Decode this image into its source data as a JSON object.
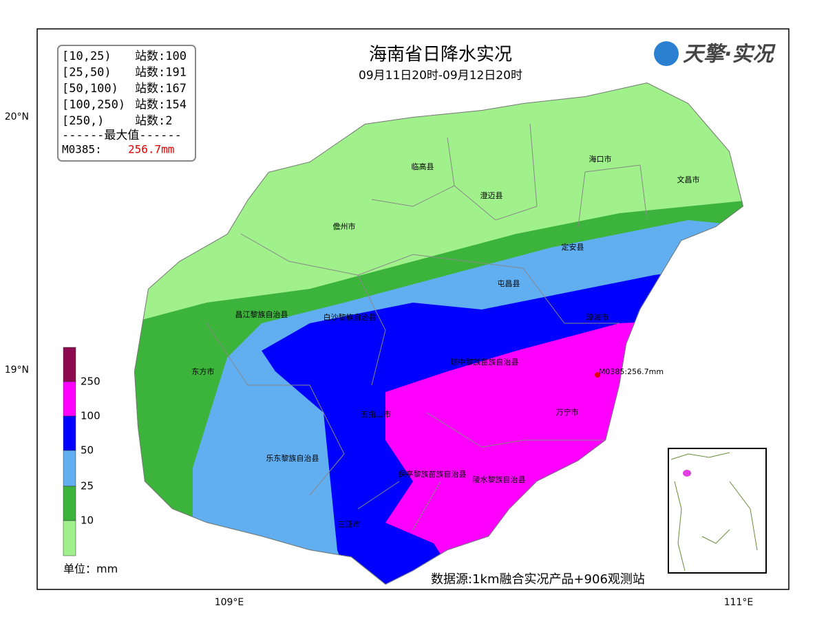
{
  "header": {
    "title": "海南省日降水实况",
    "subtitle": "09月11日20时-09月12日20时",
    "logo": "天擎·实况"
  },
  "stats": {
    "rows": [
      [
        "[10,25)",
        "站数:100"
      ],
      [
        "[25,50)",
        "站数:191"
      ],
      [
        "[50,100)",
        "站数:167"
      ],
      [
        "[100,250)",
        "站数:154"
      ],
      [
        "[250,)",
        "站数:2"
      ]
    ],
    "max_heading": "------最大值------",
    "max_station": "M0385:",
    "max_value": "256.7mm"
  },
  "legend": {
    "levels": [
      250,
      100,
      50,
      25,
      10
    ],
    "unit": "单位：mm"
  },
  "places": [
    "临高县",
    "海口市",
    "文昌市",
    "澄迈县",
    "儋州市",
    "定安县",
    "屯昌县",
    "昌江黎族自治县",
    "白沙黎族自治县",
    "琼海市",
    "琼中黎族苗族自治县",
    "东方市",
    "M0385:256.7mm",
    "万宁市",
    "五指山市",
    "乐东黎族自治县",
    "保亭黎族苗族自治县",
    "陵水黎族自治县",
    "三亚市"
  ],
  "axes": {
    "lat": [
      "20°N",
      "19°N"
    ],
    "lon": [
      "109°E",
      "111°E"
    ]
  },
  "source": "数据源:1km融合实况产品+906观测站"
}
